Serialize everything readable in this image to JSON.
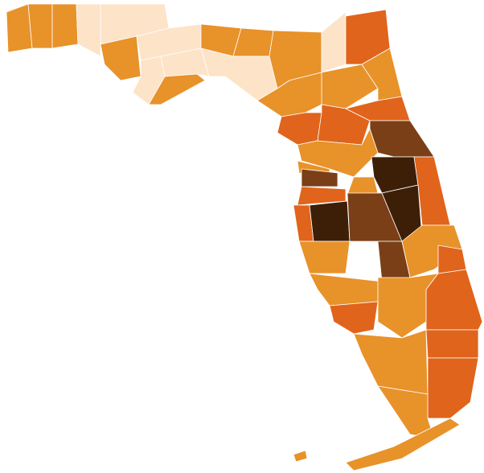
{
  "map": {
    "regions": [
      {
        "color": "#e8922a"
      },
      {
        "color": "#e8922a"
      },
      {
        "color": "#e8922a"
      },
      {
        "color": "#fde3c8"
      },
      {
        "color": "#fde3c8"
      },
      {
        "color": "#e8922a"
      },
      {
        "color": "#fde3c8"
      },
      {
        "color": "#fde3c8"
      },
      {
        "color": "#e8922a"
      },
      {
        "color": "#fde3c8"
      },
      {
        "color": "#e8922a"
      },
      {
        "color": "#e8922a"
      },
      {
        "color": "#fde3c8"
      },
      {
        "color": "#e8922a"
      },
      {
        "color": "#fde3c8"
      },
      {
        "color": "#e0641b"
      },
      {
        "color": "#e8922a"
      },
      {
        "color": "#e8922a"
      },
      {
        "color": "#e8922a"
      },
      {
        "color": "#e0641b"
      },
      {
        "color": "#e0641b"
      },
      {
        "color": "#e0641b"
      },
      {
        "color": "#e8922a"
      },
      {
        "color": "#7a3f17"
      },
      {
        "color": "#e8922a"
      },
      {
        "color": "#7a3f17"
      },
      {
        "color": "#e0641b"
      },
      {
        "color": "#3d1f08"
      },
      {
        "color": "#e8922a"
      },
      {
        "color": "#e0641b"
      },
      {
        "color": "#e0641b"
      },
      {
        "color": "#3d1f08"
      },
      {
        "color": "#7a3f17"
      },
      {
        "color": "#3d1f08"
      },
      {
        "color": "#e8922a"
      },
      {
        "color": "#7a3f17"
      },
      {
        "color": "#e8922a"
      },
      {
        "color": "#e0641b"
      },
      {
        "color": "#e8922a"
      },
      {
        "color": "#e0641b"
      },
      {
        "color": "#e8922a"
      },
      {
        "color": "#e0641b"
      },
      {
        "color": "#e8922a"
      },
      {
        "color": "#e0641b"
      },
      {
        "color": "#e0641b"
      },
      {
        "color": "#e8922a"
      },
      {
        "color": "#e8922a"
      },
      {
        "color": "#e8922a"
      }
    ]
  }
}
